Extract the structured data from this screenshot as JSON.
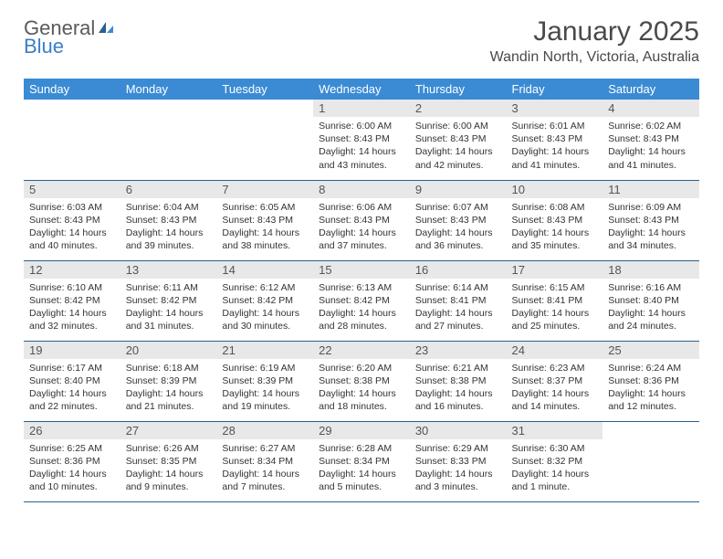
{
  "logo": {
    "general": "General",
    "blue": "Blue"
  },
  "title": "January 2025",
  "location": "Wandin North, Victoria, Australia",
  "colors": {
    "header_bg": "#3b8bd4",
    "header_text": "#ffffff",
    "daynum_bg": "#e8e8e8",
    "row_border": "#2b5f8f",
    "logo_gray": "#5a5a5a",
    "logo_blue": "#3b7fc4"
  },
  "weekdays": [
    "Sunday",
    "Monday",
    "Tuesday",
    "Wednesday",
    "Thursday",
    "Friday",
    "Saturday"
  ],
  "weeks": [
    [
      {
        "num": "",
        "lines": []
      },
      {
        "num": "",
        "lines": []
      },
      {
        "num": "",
        "lines": []
      },
      {
        "num": "1",
        "lines": [
          "Sunrise: 6:00 AM",
          "Sunset: 8:43 PM",
          "Daylight: 14 hours",
          "and 43 minutes."
        ]
      },
      {
        "num": "2",
        "lines": [
          "Sunrise: 6:00 AM",
          "Sunset: 8:43 PM",
          "Daylight: 14 hours",
          "and 42 minutes."
        ]
      },
      {
        "num": "3",
        "lines": [
          "Sunrise: 6:01 AM",
          "Sunset: 8:43 PM",
          "Daylight: 14 hours",
          "and 41 minutes."
        ]
      },
      {
        "num": "4",
        "lines": [
          "Sunrise: 6:02 AM",
          "Sunset: 8:43 PM",
          "Daylight: 14 hours",
          "and 41 minutes."
        ]
      }
    ],
    [
      {
        "num": "5",
        "lines": [
          "Sunrise: 6:03 AM",
          "Sunset: 8:43 PM",
          "Daylight: 14 hours",
          "and 40 minutes."
        ]
      },
      {
        "num": "6",
        "lines": [
          "Sunrise: 6:04 AM",
          "Sunset: 8:43 PM",
          "Daylight: 14 hours",
          "and 39 minutes."
        ]
      },
      {
        "num": "7",
        "lines": [
          "Sunrise: 6:05 AM",
          "Sunset: 8:43 PM",
          "Daylight: 14 hours",
          "and 38 minutes."
        ]
      },
      {
        "num": "8",
        "lines": [
          "Sunrise: 6:06 AM",
          "Sunset: 8:43 PM",
          "Daylight: 14 hours",
          "and 37 minutes."
        ]
      },
      {
        "num": "9",
        "lines": [
          "Sunrise: 6:07 AM",
          "Sunset: 8:43 PM",
          "Daylight: 14 hours",
          "and 36 minutes."
        ]
      },
      {
        "num": "10",
        "lines": [
          "Sunrise: 6:08 AM",
          "Sunset: 8:43 PM",
          "Daylight: 14 hours",
          "and 35 minutes."
        ]
      },
      {
        "num": "11",
        "lines": [
          "Sunrise: 6:09 AM",
          "Sunset: 8:43 PM",
          "Daylight: 14 hours",
          "and 34 minutes."
        ]
      }
    ],
    [
      {
        "num": "12",
        "lines": [
          "Sunrise: 6:10 AM",
          "Sunset: 8:42 PM",
          "Daylight: 14 hours",
          "and 32 minutes."
        ]
      },
      {
        "num": "13",
        "lines": [
          "Sunrise: 6:11 AM",
          "Sunset: 8:42 PM",
          "Daylight: 14 hours",
          "and 31 minutes."
        ]
      },
      {
        "num": "14",
        "lines": [
          "Sunrise: 6:12 AM",
          "Sunset: 8:42 PM",
          "Daylight: 14 hours",
          "and 30 minutes."
        ]
      },
      {
        "num": "15",
        "lines": [
          "Sunrise: 6:13 AM",
          "Sunset: 8:42 PM",
          "Daylight: 14 hours",
          "and 28 minutes."
        ]
      },
      {
        "num": "16",
        "lines": [
          "Sunrise: 6:14 AM",
          "Sunset: 8:41 PM",
          "Daylight: 14 hours",
          "and 27 minutes."
        ]
      },
      {
        "num": "17",
        "lines": [
          "Sunrise: 6:15 AM",
          "Sunset: 8:41 PM",
          "Daylight: 14 hours",
          "and 25 minutes."
        ]
      },
      {
        "num": "18",
        "lines": [
          "Sunrise: 6:16 AM",
          "Sunset: 8:40 PM",
          "Daylight: 14 hours",
          "and 24 minutes."
        ]
      }
    ],
    [
      {
        "num": "19",
        "lines": [
          "Sunrise: 6:17 AM",
          "Sunset: 8:40 PM",
          "Daylight: 14 hours",
          "and 22 minutes."
        ]
      },
      {
        "num": "20",
        "lines": [
          "Sunrise: 6:18 AM",
          "Sunset: 8:39 PM",
          "Daylight: 14 hours",
          "and 21 minutes."
        ]
      },
      {
        "num": "21",
        "lines": [
          "Sunrise: 6:19 AM",
          "Sunset: 8:39 PM",
          "Daylight: 14 hours",
          "and 19 minutes."
        ]
      },
      {
        "num": "22",
        "lines": [
          "Sunrise: 6:20 AM",
          "Sunset: 8:38 PM",
          "Daylight: 14 hours",
          "and 18 minutes."
        ]
      },
      {
        "num": "23",
        "lines": [
          "Sunrise: 6:21 AM",
          "Sunset: 8:38 PM",
          "Daylight: 14 hours",
          "and 16 minutes."
        ]
      },
      {
        "num": "24",
        "lines": [
          "Sunrise: 6:23 AM",
          "Sunset: 8:37 PM",
          "Daylight: 14 hours",
          "and 14 minutes."
        ]
      },
      {
        "num": "25",
        "lines": [
          "Sunrise: 6:24 AM",
          "Sunset: 8:36 PM",
          "Daylight: 14 hours",
          "and 12 minutes."
        ]
      }
    ],
    [
      {
        "num": "26",
        "lines": [
          "Sunrise: 6:25 AM",
          "Sunset: 8:36 PM",
          "Daylight: 14 hours",
          "and 10 minutes."
        ]
      },
      {
        "num": "27",
        "lines": [
          "Sunrise: 6:26 AM",
          "Sunset: 8:35 PM",
          "Daylight: 14 hours",
          "and 9 minutes."
        ]
      },
      {
        "num": "28",
        "lines": [
          "Sunrise: 6:27 AM",
          "Sunset: 8:34 PM",
          "Daylight: 14 hours",
          "and 7 minutes."
        ]
      },
      {
        "num": "29",
        "lines": [
          "Sunrise: 6:28 AM",
          "Sunset: 8:34 PM",
          "Daylight: 14 hours",
          "and 5 minutes."
        ]
      },
      {
        "num": "30",
        "lines": [
          "Sunrise: 6:29 AM",
          "Sunset: 8:33 PM",
          "Daylight: 14 hours",
          "and 3 minutes."
        ]
      },
      {
        "num": "31",
        "lines": [
          "Sunrise: 6:30 AM",
          "Sunset: 8:32 PM",
          "Daylight: 14 hours",
          "and 1 minute."
        ]
      },
      {
        "num": "",
        "lines": []
      }
    ]
  ]
}
